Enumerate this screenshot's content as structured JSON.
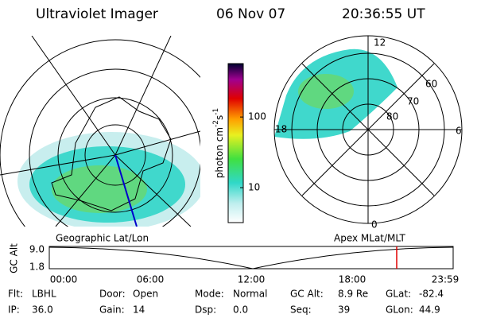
{
  "header": {
    "title": "Ultraviolet Imager",
    "date": "06 Nov 07",
    "time": "20:36:55 UT"
  },
  "colorbar": {
    "label": "photon cm",
    "exponent_1": "-2",
    "unit_2": "s",
    "exponent_2": "-1",
    "scale": "log",
    "range": [
      3.2,
      570
    ],
    "ticks": [
      10,
      100
    ]
  },
  "apex_plot": {
    "mlt_labels": [
      "12",
      "6",
      "0",
      "18"
    ],
    "mlat_labels": [
      "60",
      "70",
      "80"
    ]
  },
  "timeline": {
    "left_title": "Geographic Lat/Lon",
    "right_title": "Apex MLat/MLT",
    "axis_label": "GC Alt",
    "y_labels": [
      "9.0",
      "1.8"
    ],
    "x_labels": [
      "00:00",
      "06:00",
      "12:00",
      "18:00",
      "23:59"
    ]
  },
  "status": [
    [
      {
        "label": "Flt:",
        "value": "LBHL"
      },
      {
        "label": "Door:",
        "value": "Open"
      },
      {
        "label": "Mode:",
        "value": "Normal"
      },
      {
        "label": "GC Alt:",
        "value": "8.9 Re"
      },
      {
        "label": "GLat:",
        "value": "-82.4"
      }
    ],
    [
      {
        "label": "IP:",
        "value": "36.0"
      },
      {
        "label": "Gain:",
        "value": "14"
      },
      {
        "label": "Dsp:",
        "value": "0.0"
      },
      {
        "label": "Seq:",
        "value": "39"
      },
      {
        "label": "GLon:",
        "value": "44.9"
      }
    ]
  ]
}
